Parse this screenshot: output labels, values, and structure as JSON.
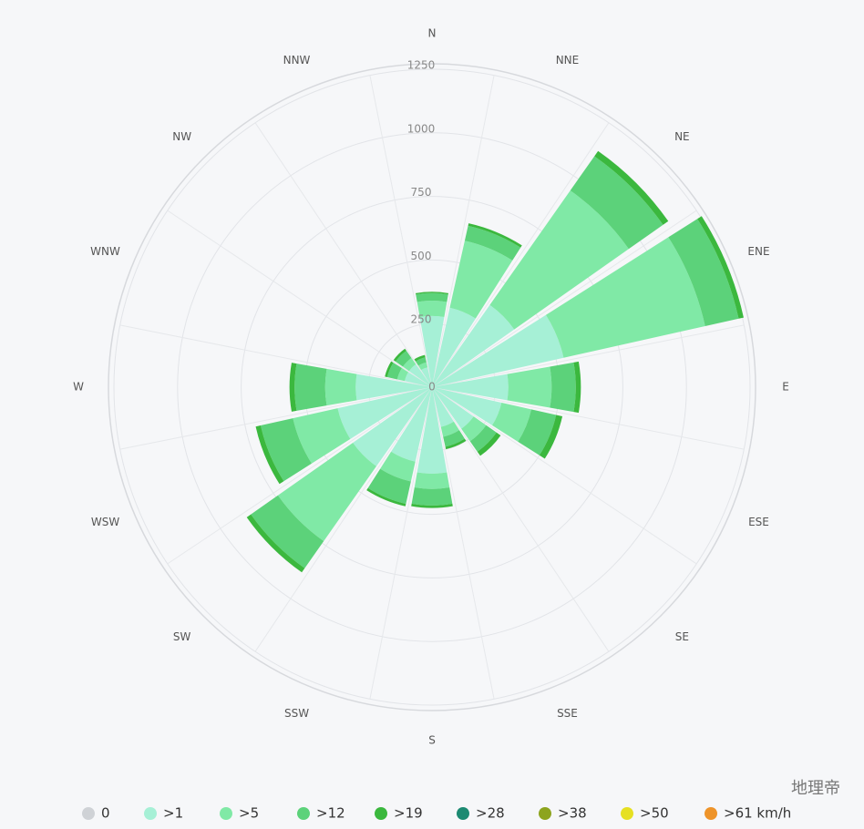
{
  "chart_data": {
    "type": "windrose",
    "categories": [
      "N",
      "NNE",
      "NE",
      "ENE",
      "E",
      "ESE",
      "SE",
      "SSE",
      "S",
      "SSW",
      "SW",
      "WSW",
      "W",
      "WNW",
      "NW",
      "NNW"
    ],
    "rlim": [
      0,
      1250
    ],
    "rticks": [
      0,
      250,
      500,
      750,
      1000,
      1250
    ],
    "grid": true,
    "legend": "bottom",
    "series": [
      {
        "name": "0",
        "color": "#cfd2d6",
        "values": [
          0,
          0,
          0,
          0,
          0,
          0,
          0,
          0,
          0,
          0,
          0,
          0,
          0,
          0,
          0,
          0
        ]
      },
      {
        "name": ">1",
        "color": "#a6f0d6",
        "values": [
          280,
          320,
          395,
          530,
          300,
          280,
          200,
          160,
          340,
          300,
          380,
          380,
          300,
          110,
          110,
          80
        ]
      },
      {
        "name": ">5",
        "color": "#80e9a6",
        "values": [
          60,
          270,
          550,
          570,
          170,
          120,
          60,
          40,
          60,
          80,
          360,
          180,
          120,
          30,
          30,
          20
        ]
      },
      {
        "name": ">12",
        "color": "#5cd27a",
        "values": [
          30,
          60,
          165,
          135,
          95,
          100,
          50,
          40,
          65,
          90,
          130,
          130,
          120,
          40,
          35,
          20
        ]
      },
      {
        "name": ">19",
        "color": "#3bb83e",
        "values": [
          5,
          10,
          25,
          20,
          20,
          25,
          20,
          10,
          10,
          10,
          20,
          20,
          20,
          10,
          10,
          10
        ]
      },
      {
        "name": ">28",
        "color": "#1c8a72",
        "values": [
          0,
          0,
          0,
          0,
          0,
          0,
          0,
          0,
          0,
          0,
          0,
          0,
          0,
          0,
          0,
          0
        ]
      },
      {
        "name": ">38",
        "color": "#8da41e",
        "values": [
          0,
          0,
          0,
          0,
          0,
          0,
          0,
          0,
          0,
          0,
          0,
          0,
          0,
          0,
          0,
          0
        ]
      },
      {
        "name": ">50",
        "color": "#e6e022",
        "values": [
          0,
          0,
          0,
          0,
          0,
          0,
          0,
          0,
          0,
          0,
          0,
          0,
          0,
          0,
          0,
          0
        ]
      },
      {
        "name": ">61 km/h",
        "color": "#ee942a",
        "values": [
          0,
          0,
          0,
          0,
          0,
          0,
          0,
          0,
          0,
          0,
          0,
          0,
          0,
          0,
          0,
          0
        ]
      }
    ],
    "watermark": "地理帝"
  }
}
